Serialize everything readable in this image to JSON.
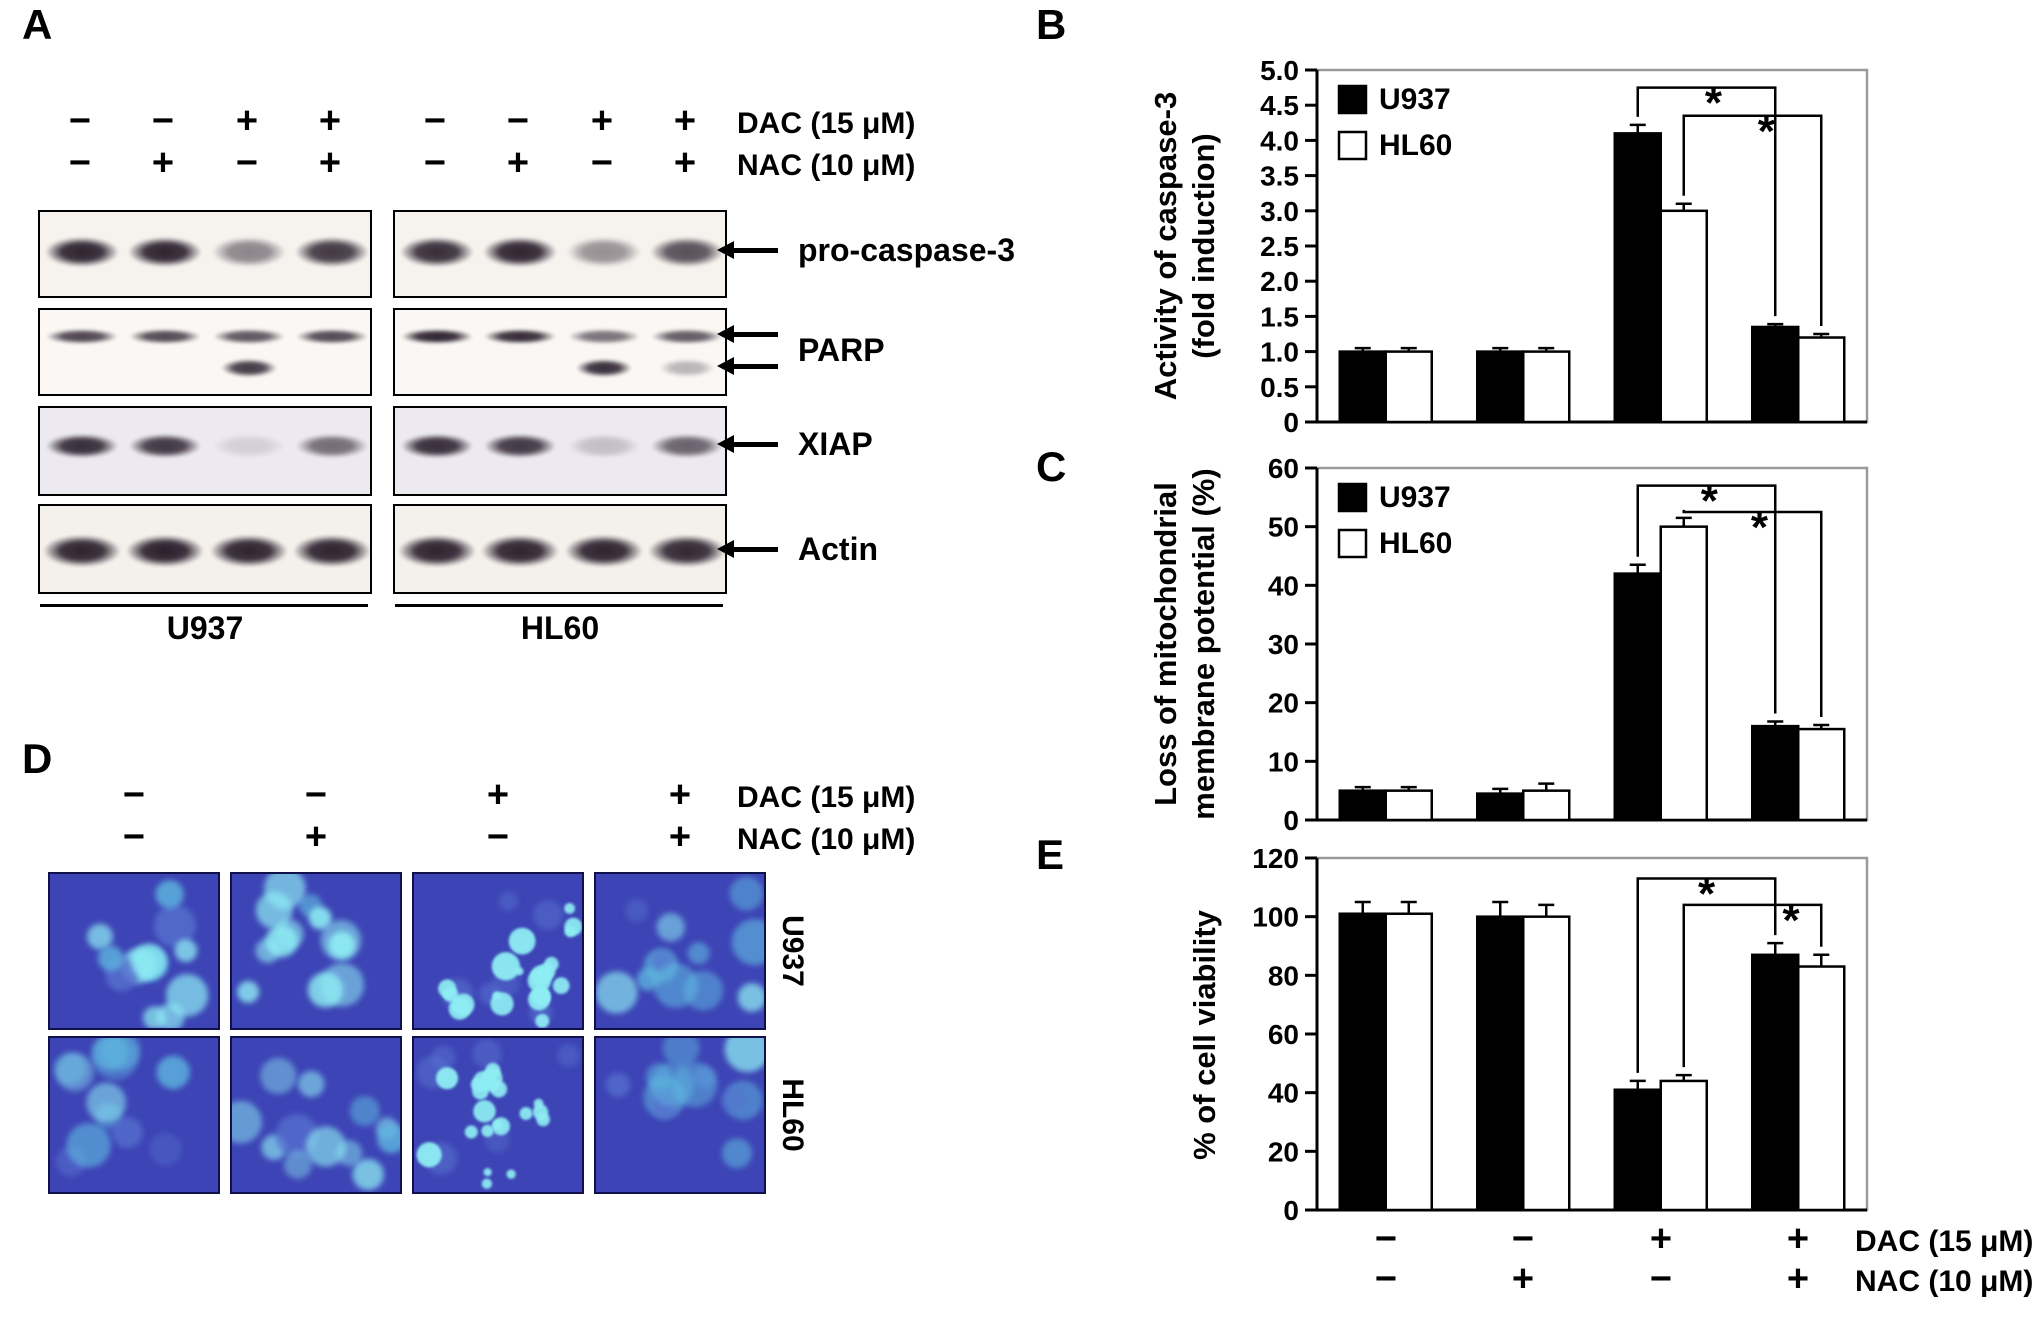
{
  "panels": {
    "B": "B",
    "C": "C",
    "E": "E"
  },
  "symbols": {
    "significance": "*"
  },
  "treatments": {
    "dac_label": "DAC (15 μM)",
    "nac_label": "NAC (10 μM)",
    "dac_signs": [
      "−",
      "−",
      "+",
      "+"
    ],
    "nac_signs": [
      "−",
      "+",
      "−",
      "+"
    ]
  },
  "panel_a": {
    "label": "A",
    "cell_lines": [
      "U937",
      "HL60"
    ],
    "blots": [
      {
        "name": "pro-caspase-3",
        "u937_main": [
          0.95,
          0.95,
          0.5,
          0.85
        ],
        "hl60_main": [
          0.9,
          0.95,
          0.45,
          0.75
        ]
      },
      {
        "name": "PARP",
        "u937_main": [
          0.8,
          0.78,
          0.72,
          0.78
        ],
        "u937_cleaved": [
          0,
          0,
          0.85,
          0
        ],
        "hl60_main": [
          0.95,
          0.92,
          0.6,
          0.7
        ],
        "hl60_cleaved": [
          0,
          0,
          0.9,
          0.3
        ]
      },
      {
        "name": "XIAP",
        "u937_main": [
          0.9,
          0.85,
          0.12,
          0.6
        ],
        "hl60_main": [
          0.9,
          0.85,
          0.2,
          0.65
        ]
      },
      {
        "name": "Actin",
        "u937_main": [
          0.95,
          0.97,
          0.95,
          0.95
        ],
        "hl60_main": [
          0.95,
          0.95,
          0.95,
          0.93
        ]
      }
    ]
  },
  "panel_d": {
    "label": "D",
    "row_labels": [
      "U937",
      "HL60"
    ],
    "colors": {
      "bg": "#3d44b5",
      "cell_bright": "#8feef4",
      "cell_mid": "#5fb8e0",
      "cell_dim": "#5671cf"
    },
    "images": [
      [
        {
          "seed": 11,
          "style": "normal"
        },
        {
          "seed": 22,
          "style": "normal"
        },
        {
          "seed": 33,
          "style": "apoptotic"
        },
        {
          "seed": 44,
          "style": "dim"
        }
      ],
      [
        {
          "seed": 55,
          "style": "dim"
        },
        {
          "seed": 66,
          "style": "dim"
        },
        {
          "seed": 77,
          "style": "apoptotic"
        },
        {
          "seed": 88,
          "style": "dim"
        }
      ]
    ]
  },
  "chart_data": [
    {
      "panel": "B",
      "type": "bar",
      "ylabel_lines": [
        "Activity of caspase-3",
        "(fold induction)"
      ],
      "ylim": [
        0,
        5.0
      ],
      "yticks": [
        "0",
        "0.5",
        "1.0",
        "1.5",
        "2.0",
        "2.5",
        "3.0",
        "3.5",
        "4.0",
        "4.5",
        "5.0"
      ],
      "categories": [
        "DAC− NAC−",
        "DAC− NAC+",
        "DAC+ NAC−",
        "DAC+ NAC+"
      ],
      "legend": [
        "U937",
        "HL60"
      ],
      "series": [
        {
          "name": "U937",
          "color": "#000000",
          "values": [
            1.0,
            1.0,
            4.1,
            1.35
          ],
          "errors": [
            0.05,
            0.05,
            0.12,
            0.04
          ]
        },
        {
          "name": "HL60",
          "color": "#ffffff",
          "values": [
            1.0,
            1.0,
            3.0,
            1.2
          ],
          "errors": [
            0.05,
            0.05,
            0.1,
            0.05
          ]
        }
      ],
      "brackets": [
        {
          "from": [
            2,
            0
          ],
          "to": [
            3,
            0
          ],
          "y": 4.75,
          "star_frac": 0.55
        },
        {
          "from": [
            2,
            1
          ],
          "to": [
            3,
            1
          ],
          "y": 4.35,
          "star_frac": 0.6
        }
      ]
    },
    {
      "panel": "C",
      "type": "bar",
      "ylabel_lines": [
        "Loss of mitochondrial",
        "membrane potential (%)"
      ],
      "ylim": [
        0,
        60
      ],
      "yticks": [
        "0",
        "10",
        "20",
        "30",
        "40",
        "50",
        "60"
      ],
      "categories": [
        "DAC− NAC−",
        "DAC− NAC+",
        "DAC+ NAC−",
        "DAC+ NAC+"
      ],
      "legend": [
        "U937",
        "HL60"
      ],
      "series": [
        {
          "name": "U937",
          "color": "#000000",
          "values": [
            5,
            4.5,
            42,
            16
          ],
          "errors": [
            0.6,
            0.8,
            1.5,
            0.8
          ]
        },
        {
          "name": "HL60",
          "color": "#ffffff",
          "values": [
            5,
            5,
            50,
            15.5
          ],
          "errors": [
            0.6,
            1.2,
            1.5,
            0.7
          ]
        }
      ],
      "brackets": [
        {
          "from": [
            2,
            0
          ],
          "to": [
            3,
            0
          ],
          "y": 57,
          "star_frac": 0.52
        },
        {
          "from": [
            2,
            1
          ],
          "to": [
            3,
            1
          ],
          "y": 52.5,
          "star_frac": 0.55
        }
      ]
    },
    {
      "panel": "E",
      "type": "bar",
      "ylabel_lines": [
        "% of cell viability"
      ],
      "ylim": [
        0,
        120
      ],
      "yticks": [
        "0",
        "20",
        "40",
        "60",
        "80",
        "100",
        "120"
      ],
      "categories": [
        "DAC− NAC−",
        "DAC− NAC+",
        "DAC+ NAC−",
        "DAC+ NAC+"
      ],
      "legend": [],
      "series": [
        {
          "name": "U937",
          "color": "#000000",
          "values": [
            101,
            100,
            41,
            87
          ],
          "errors": [
            4,
            5,
            3,
            4
          ]
        },
        {
          "name": "HL60",
          "color": "#ffffff",
          "values": [
            101,
            100,
            44,
            83
          ],
          "errors": [
            4,
            4,
            2,
            4
          ]
        }
      ],
      "brackets": [
        {
          "from": [
            2,
            0
          ],
          "to": [
            3,
            0
          ],
          "y": 113,
          "star_frac": 0.5
        },
        {
          "from": [
            2,
            1
          ],
          "to": [
            3,
            1
          ],
          "y": 104,
          "star_frac": 0.78
        }
      ]
    }
  ]
}
